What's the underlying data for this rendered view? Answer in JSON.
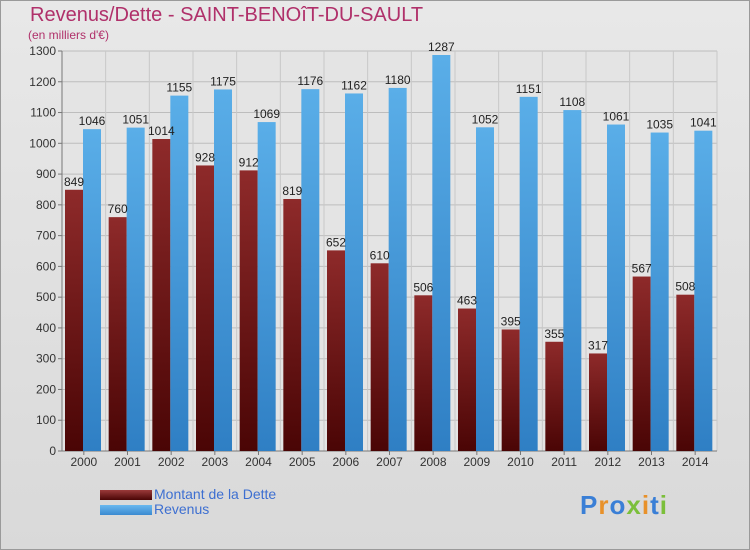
{
  "title": "Revenus/Dette - SAINT-BENOîT-DU-SAULT",
  "subtitle": "(en milliers d'€)",
  "legend": {
    "debt_label": "Montant de la Dette",
    "revenue_label": "Revenus"
  },
  "logo": {
    "text": "Proxiti",
    "letters": [
      "P",
      "r",
      "o",
      "x",
      "i",
      "t",
      "i"
    ]
  },
  "colors": {
    "debt": "#7a1414",
    "revenue": "#4a9ee0",
    "title": "#b0306a",
    "legend_text": "#3d6fd1"
  },
  "chart_data": {
    "type": "bar",
    "categories": [
      "2000",
      "2001",
      "2002",
      "2003",
      "2004",
      "2005",
      "2006",
      "2007",
      "2008",
      "2009",
      "2010",
      "2011",
      "2012",
      "2013",
      "2014"
    ],
    "series": [
      {
        "name": "Montant de la Dette",
        "values": [
          849,
          760,
          1014,
          928,
          912,
          819,
          652,
          610,
          506,
          463,
          395,
          355,
          317,
          567,
          508
        ]
      },
      {
        "name": "Revenus",
        "values": [
          1046,
          1051,
          1155,
          1175,
          1069,
          1176,
          1162,
          1180,
          1287,
          1052,
          1151,
          1108,
          1061,
          1035,
          1041
        ]
      }
    ],
    "ylim": [
      0,
      1300
    ],
    "yticks": [
      0,
      100,
      200,
      300,
      400,
      500,
      600,
      700,
      800,
      900,
      1000,
      1100,
      1200,
      1300
    ],
    "grid": true,
    "legend_position": "bottom-left"
  }
}
